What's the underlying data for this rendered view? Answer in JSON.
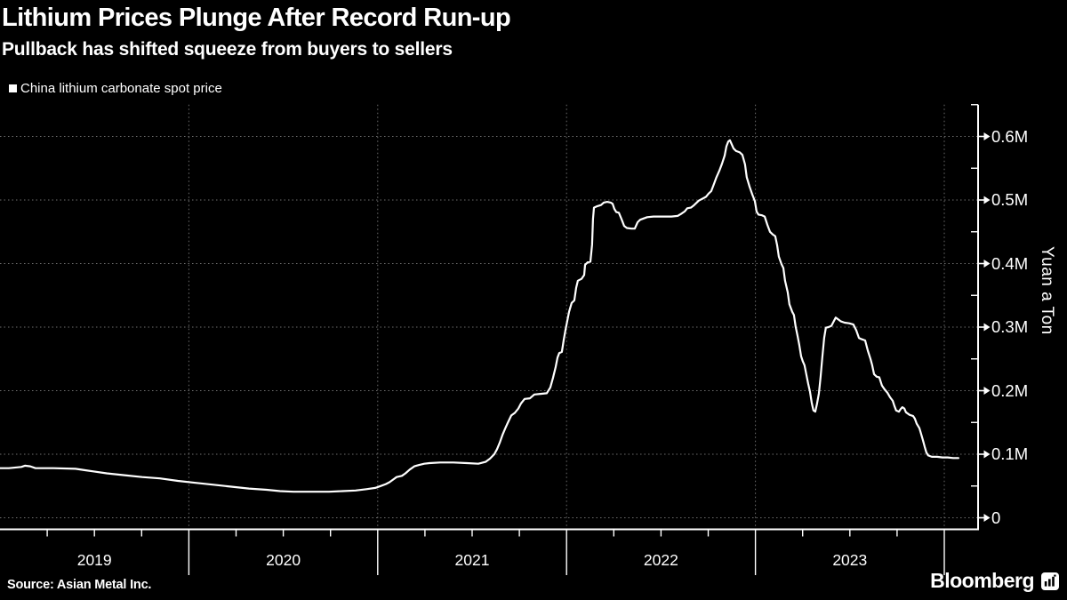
{
  "header": {
    "title": "Lithium Prices Plunge After Record Run-up",
    "subtitle": "Pullback has shifted squeeze from buyers to sellers"
  },
  "legend": {
    "series_label": "China lithium carbonate spot price",
    "swatch_color": "#ffffff"
  },
  "footer": {
    "source": "Source: Asian Metal Inc.",
    "brand": "Bloomberg"
  },
  "chart_data": {
    "type": "line",
    "title": "Lithium Prices Plunge After Record Run-up",
    "subtitle": "Pullback has shifted squeeze from buyers to sellers",
    "ylabel": "Yuan a Ton",
    "units": "million yuan per ton",
    "background": "#000000",
    "grid": "dotted gray horizontal and vertical year lines",
    "legend_position": "top-left",
    "line_color": "#ffffff",
    "ylim": [
      0,
      0.65
    ],
    "y_ticks": [
      {
        "v": 0.0,
        "label": "0"
      },
      {
        "v": 0.1,
        "label": "0.1M"
      },
      {
        "v": 0.2,
        "label": "0.2M"
      },
      {
        "v": 0.3,
        "label": "0.3M"
      },
      {
        "v": 0.4,
        "label": "0.4M"
      },
      {
        "v": 0.5,
        "label": "0.5M"
      },
      {
        "v": 0.6,
        "label": "0.6M"
      }
    ],
    "y_minor_ticks": [
      0.05,
      0.15,
      0.25,
      0.35,
      0.45,
      0.55,
      0.65
    ],
    "x_year_labels": [
      "2019",
      "2020",
      "2021",
      "2022",
      "2023"
    ],
    "x_start_year": 2019,
    "series": [
      {
        "name": "China lithium carbonate spot price",
        "color": "#ffffff",
        "points": [
          [
            2019.0,
            0.078
          ],
          [
            2019.047,
            0.078
          ],
          [
            2019.113,
            0.08
          ],
          [
            2019.132,
            0.082
          ],
          [
            2019.16,
            0.081
          ],
          [
            2019.188,
            0.078
          ],
          [
            2019.282,
            0.078
          ],
          [
            2019.4,
            0.077
          ],
          [
            2019.447,
            0.075
          ],
          [
            2019.494,
            0.073
          ],
          [
            2019.565,
            0.07
          ],
          [
            2019.659,
            0.067
          ],
          [
            2019.753,
            0.064
          ],
          [
            2019.847,
            0.062
          ],
          [
            2019.942,
            0.058
          ],
          [
            2020.036,
            0.055
          ],
          [
            2020.13,
            0.052
          ],
          [
            2020.224,
            0.049
          ],
          [
            2020.318,
            0.046
          ],
          [
            2020.412,
            0.044
          ],
          [
            2020.483,
            0.042
          ],
          [
            2020.554,
            0.041
          ],
          [
            2020.648,
            0.041
          ],
          [
            2020.742,
            0.041
          ],
          [
            2020.813,
            0.042
          ],
          [
            2020.883,
            0.043
          ],
          [
            2020.94,
            0.045
          ],
          [
            2020.987,
            0.047
          ],
          [
            2021.015,
            0.05
          ],
          [
            2021.043,
            0.053
          ],
          [
            2021.062,
            0.056
          ],
          [
            2021.081,
            0.06
          ],
          [
            2021.1,
            0.064
          ],
          [
            2021.128,
            0.066
          ],
          [
            2021.147,
            0.07
          ],
          [
            2021.17,
            0.076
          ],
          [
            2021.194,
            0.081
          ],
          [
            2021.217,
            0.083
          ],
          [
            2021.246,
            0.085
          ],
          [
            2021.274,
            0.086
          ],
          [
            2021.33,
            0.087
          ],
          [
            2021.401,
            0.087
          ],
          [
            2021.472,
            0.086
          ],
          [
            2021.533,
            0.085
          ],
          [
            2021.571,
            0.088
          ],
          [
            2021.594,
            0.093
          ],
          [
            2021.617,
            0.1
          ],
          [
            2021.632,
            0.108
          ],
          [
            2021.646,
            0.118
          ],
          [
            2021.66,
            0.13
          ],
          [
            2021.674,
            0.14
          ],
          [
            2021.688,
            0.149
          ],
          [
            2021.707,
            0.161
          ],
          [
            2021.726,
            0.165
          ],
          [
            2021.745,
            0.172
          ],
          [
            2021.759,
            0.18
          ],
          [
            2021.778,
            0.187
          ],
          [
            2021.806,
            0.188
          ],
          [
            2021.829,
            0.194
          ],
          [
            2021.862,
            0.195
          ],
          [
            2021.895,
            0.196
          ],
          [
            2021.914,
            0.205
          ],
          [
            2021.928,
            0.22
          ],
          [
            2021.942,
            0.237
          ],
          [
            2021.952,
            0.252
          ],
          [
            2021.961,
            0.259
          ],
          [
            2021.975,
            0.261
          ],
          [
            2021.985,
            0.28
          ],
          [
            2021.994,
            0.295
          ],
          [
            2022.004,
            0.31
          ],
          [
            2022.013,
            0.324
          ],
          [
            2022.027,
            0.338
          ],
          [
            2022.041,
            0.342
          ],
          [
            2022.051,
            0.362
          ],
          [
            2022.06,
            0.373
          ],
          [
            2022.079,
            0.376
          ],
          [
            2022.093,
            0.382
          ],
          [
            2022.098,
            0.398
          ],
          [
            2022.112,
            0.402
          ],
          [
            2022.126,
            0.403
          ],
          [
            2022.135,
            0.43
          ],
          [
            2022.14,
            0.47
          ],
          [
            2022.145,
            0.488
          ],
          [
            2022.159,
            0.49
          ],
          [
            2022.182,
            0.492
          ],
          [
            2022.197,
            0.496
          ],
          [
            2022.215,
            0.497
          ],
          [
            2022.234,
            0.496
          ],
          [
            2022.244,
            0.494
          ],
          [
            2022.253,
            0.486
          ],
          [
            2022.263,
            0.481
          ],
          [
            2022.277,
            0.48
          ],
          [
            2022.291,
            0.47
          ],
          [
            2022.305,
            0.459
          ],
          [
            2022.319,
            0.456
          ],
          [
            2022.343,
            0.455
          ],
          [
            2022.361,
            0.455
          ],
          [
            2022.376,
            0.465
          ],
          [
            2022.39,
            0.469
          ],
          [
            2022.409,
            0.471
          ],
          [
            2022.427,
            0.473
          ],
          [
            2022.46,
            0.474
          ],
          [
            2022.507,
            0.474
          ],
          [
            2022.555,
            0.474
          ],
          [
            2022.588,
            0.475
          ],
          [
            2022.606,
            0.478
          ],
          [
            2022.625,
            0.482
          ],
          [
            2022.639,
            0.487
          ],
          [
            2022.658,
            0.488
          ],
          [
            2022.672,
            0.491
          ],
          [
            2022.686,
            0.495
          ],
          [
            2022.7,
            0.499
          ],
          [
            2022.719,
            0.502
          ],
          [
            2022.738,
            0.505
          ],
          [
            2022.752,
            0.51
          ],
          [
            2022.766,
            0.514
          ],
          [
            2022.78,
            0.525
          ],
          [
            2022.794,
            0.536
          ],
          [
            2022.809,
            0.546
          ],
          [
            2022.823,
            0.557
          ],
          [
            2022.837,
            0.57
          ],
          [
            2022.846,
            0.584
          ],
          [
            2022.856,
            0.592
          ],
          [
            2022.865,
            0.594
          ],
          [
            2022.874,
            0.588
          ],
          [
            2022.884,
            0.581
          ],
          [
            2022.898,
            0.577
          ],
          [
            2022.917,
            0.575
          ],
          [
            2022.931,
            0.571
          ],
          [
            2022.945,
            0.556
          ],
          [
            2022.954,
            0.536
          ],
          [
            2022.969,
            0.521
          ],
          [
            2022.983,
            0.509
          ],
          [
            2022.997,
            0.498
          ],
          [
            2023.006,
            0.482
          ],
          [
            2023.016,
            0.477
          ],
          [
            2023.035,
            0.476
          ],
          [
            2023.049,
            0.474
          ],
          [
            2023.063,
            0.461
          ],
          [
            2023.077,
            0.45
          ],
          [
            2023.091,
            0.446
          ],
          [
            2023.105,
            0.443
          ],
          [
            2023.115,
            0.429
          ],
          [
            2023.124,
            0.411
          ],
          [
            2023.138,
            0.399
          ],
          [
            2023.148,
            0.393
          ],
          [
            2023.157,
            0.373
          ],
          [
            2023.171,
            0.355
          ],
          [
            2023.18,
            0.336
          ],
          [
            2023.195,
            0.324
          ],
          [
            2023.204,
            0.319
          ],
          [
            2023.213,
            0.301
          ],
          [
            2023.223,
            0.286
          ],
          [
            2023.232,
            0.272
          ],
          [
            2023.242,
            0.254
          ],
          [
            2023.251,
            0.246
          ],
          [
            2023.26,
            0.24
          ],
          [
            2023.27,
            0.225
          ],
          [
            2023.279,
            0.211
          ],
          [
            2023.289,
            0.198
          ],
          [
            2023.298,
            0.181
          ],
          [
            2023.307,
            0.169
          ],
          [
            2023.317,
            0.167
          ],
          [
            2023.326,
            0.179
          ],
          [
            2023.336,
            0.196
          ],
          [
            2023.345,
            0.222
          ],
          [
            2023.354,
            0.252
          ],
          [
            2023.364,
            0.283
          ],
          [
            2023.373,
            0.299
          ],
          [
            2023.387,
            0.3
          ],
          [
            2023.402,
            0.302
          ],
          [
            2023.416,
            0.31
          ],
          [
            2023.425,
            0.315
          ],
          [
            2023.439,
            0.312
          ],
          [
            2023.453,
            0.309
          ],
          [
            2023.472,
            0.307
          ],
          [
            2023.496,
            0.306
          ],
          [
            2023.519,
            0.304
          ],
          [
            2023.534,
            0.295
          ],
          [
            2023.548,
            0.283
          ],
          [
            2023.562,
            0.281
          ],
          [
            2023.581,
            0.279
          ],
          [
            2023.595,
            0.263
          ],
          [
            2023.609,
            0.25
          ],
          [
            2023.618,
            0.24
          ],
          [
            2023.628,
            0.226
          ],
          [
            2023.642,
            0.222
          ],
          [
            2023.656,
            0.221
          ],
          [
            2023.67,
            0.208
          ],
          [
            2023.684,
            0.202
          ],
          [
            2023.698,
            0.197
          ],
          [
            2023.712,
            0.19
          ],
          [
            2023.727,
            0.184
          ],
          [
            2023.736,
            0.176
          ],
          [
            2023.745,
            0.169
          ],
          [
            2023.76,
            0.167
          ],
          [
            2023.769,
            0.171
          ],
          [
            2023.778,
            0.174
          ],
          [
            2023.788,
            0.172
          ],
          [
            2023.797,
            0.166
          ],
          [
            2023.816,
            0.162
          ],
          [
            2023.835,
            0.16
          ],
          [
            2023.844,
            0.156
          ],
          [
            2023.854,
            0.148
          ],
          [
            2023.868,
            0.141
          ],
          [
            2023.877,
            0.132
          ],
          [
            2023.887,
            0.122
          ],
          [
            2023.896,
            0.112
          ],
          [
            2023.905,
            0.103
          ],
          [
            2023.915,
            0.098
          ],
          [
            2023.934,
            0.096
          ],
          [
            2023.962,
            0.096
          ],
          [
            2023.99,
            0.095
          ],
          [
            2024.018,
            0.095
          ],
          [
            2024.047,
            0.094
          ],
          [
            2024.075,
            0.094
          ]
        ]
      }
    ]
  }
}
